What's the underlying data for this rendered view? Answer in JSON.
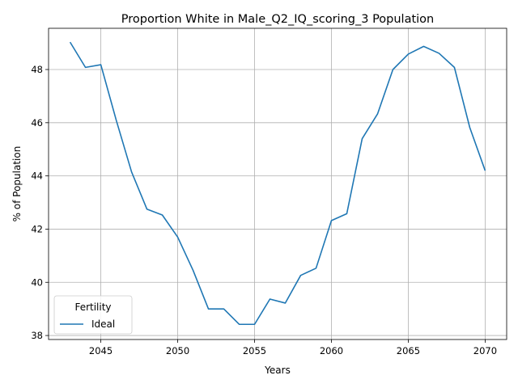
{
  "chart_data": {
    "type": "line",
    "title": "Proportion White in Male_Q2_IQ_scoring_3 Population",
    "xlabel": "Years",
    "ylabel": "% of Population",
    "xlim": [
      2041.6,
      2071.4
    ],
    "ylim": [
      37.85,
      49.55
    ],
    "xticks": [
      2045,
      2050,
      2055,
      2060,
      2065,
      2070
    ],
    "yticks": [
      38,
      40,
      42,
      44,
      46,
      48
    ],
    "grid": true,
    "legend": {
      "title": "Fertility",
      "placement": "lower-left"
    },
    "series": [
      {
        "name": "Ideal",
        "color": "#1f77b4",
        "x": [
          2043,
          2044,
          2045,
          2046,
          2047,
          2048,
          2049,
          2050,
          2051,
          2052,
          2053,
          2054,
          2055,
          2056,
          2057,
          2058,
          2059,
          2060,
          2061,
          2062,
          2063,
          2064,
          2065,
          2066,
          2067,
          2068,
          2069,
          2070
        ],
        "y": [
          49.03,
          48.08,
          48.18,
          46.1,
          44.15,
          42.75,
          42.53,
          41.7,
          40.45,
          39.0,
          39.0,
          38.42,
          38.42,
          39.37,
          39.22,
          40.26,
          40.53,
          42.32,
          42.58,
          45.4,
          46.33,
          48.0,
          48.58,
          48.87,
          48.61,
          48.08,
          45.82,
          44.2
        ]
      }
    ]
  }
}
